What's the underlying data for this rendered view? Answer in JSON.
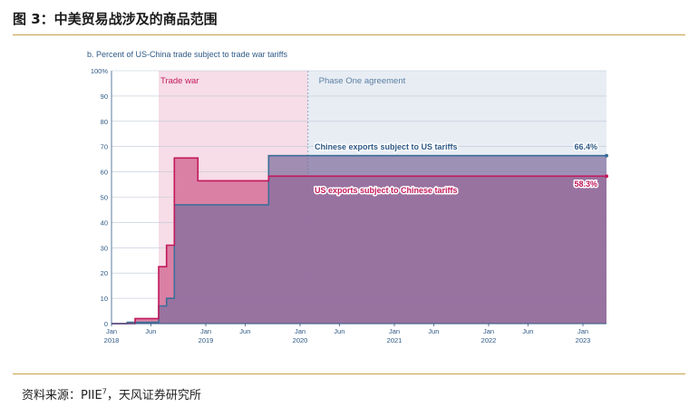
{
  "figure": {
    "title": "图 3：中美贸易战涉及的商品范围",
    "source_text": "资料来源：PIIE",
    "source_sup": "7",
    "source_suffix": "，天风证券研究所"
  },
  "chart_data": {
    "type": "area",
    "title": "b. Percent of US-China trade subject to trade war tariffs",
    "xlabel": "",
    "ylabel": "",
    "ylim": [
      0,
      100
    ],
    "xlim": [
      "2018-01",
      "2023-04"
    ],
    "yticks": [
      "0",
      "10",
      "20",
      "30",
      "40",
      "50",
      "60",
      "70",
      "80",
      "90",
      "100%"
    ],
    "xticks": [
      {
        "t": "2018-01",
        "line1": "Jan",
        "line2": "2018"
      },
      {
        "t": "2018-06",
        "line1": "Jun",
        "line2": ""
      },
      {
        "t": "2019-01",
        "line1": "Jan",
        "line2": "2019"
      },
      {
        "t": "2019-06",
        "line1": "Jun",
        "line2": ""
      },
      {
        "t": "2020-01",
        "line1": "Jan",
        "line2": "2020"
      },
      {
        "t": "2020-06",
        "line1": "Jun",
        "line2": ""
      },
      {
        "t": "2021-01",
        "line1": "Jan",
        "line2": "2021"
      },
      {
        "t": "2021-06",
        "line1": "Jun",
        "line2": ""
      },
      {
        "t": "2022-01",
        "line1": "Jan",
        "line2": "2022"
      },
      {
        "t": "2022-06",
        "line1": "Jun",
        "line2": ""
      },
      {
        "t": "2023-01",
        "line1": "Jan",
        "line2": "2023"
      }
    ],
    "grid": true,
    "periods": [
      {
        "label": "Trade war",
        "start": "2018-07",
        "end": "2020-02",
        "color": "#f6dde7"
      },
      {
        "label": "Phase One agreement",
        "start": "2020-02",
        "end": "2023-04",
        "color": "#e8edf4"
      }
    ],
    "series": [
      {
        "name": "Chinese exports subject to US tariffs",
        "end_label": "66.4%",
        "color": "#3d6e99",
        "fill": "#7f6e9e",
        "steps": [
          [
            "2018-01",
            0
          ],
          [
            "2018-03",
            0.5
          ],
          [
            "2018-07",
            7
          ],
          [
            "2018-08",
            10
          ],
          [
            "2018-09",
            47
          ],
          [
            "2019-09",
            66.4
          ],
          [
            "2023-04",
            66.4
          ]
        ]
      },
      {
        "name": "US exports subject to Chinese tariffs",
        "end_label": "58.3%",
        "color": "#c2185b",
        "fill": "#d87aa0",
        "steps": [
          [
            "2018-01",
            0
          ],
          [
            "2018-04",
            2
          ],
          [
            "2018-07",
            22.5
          ],
          [
            "2018-08",
            31
          ],
          [
            "2018-09",
            65.5
          ],
          [
            "2018-12",
            56.5
          ],
          [
            "2019-09",
            58.3
          ],
          [
            "2023-04",
            58.3
          ]
        ]
      }
    ],
    "colors": {
      "accent_gold": "#c8a24a",
      "axis_blue": "#2f5a86",
      "trade_war_red": "#c2185b",
      "overlap_purple": "#8b7ba7"
    }
  }
}
